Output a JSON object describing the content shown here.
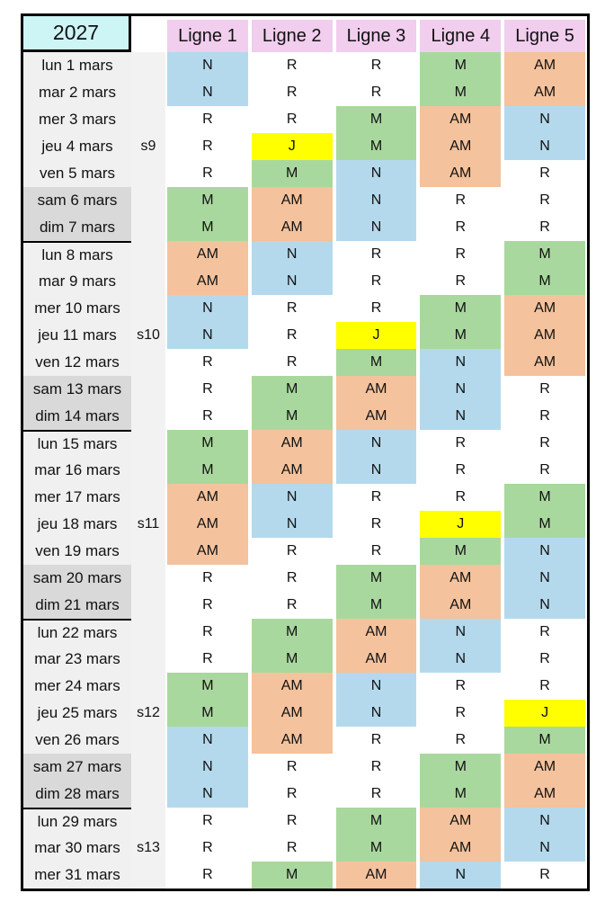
{
  "title": {
    "year": "2027"
  },
  "header": {
    "columns": [
      "Ligne 1",
      "Ligne 2",
      "Ligne 3",
      "Ligne 4",
      "Ligne 5"
    ]
  },
  "colors": {
    "year_box_cyan": "#cdf5f6",
    "header_pink": "#f1cdee",
    "weekday_gray": "#f0f0f0",
    "weekend_gray": "#d9d9d9",
    "week_column_gray": "#f2f2f2",
    "border_black": "#000000"
  },
  "shift_colors": {
    "N": "#b4d9ec",
    "M": "#a9d89e",
    "AM": "#f4c29c",
    "J": "#ffff00",
    "R": "#ffffff"
  },
  "rows": [
    {
      "date": "lun 1 mars",
      "week": "",
      "weekend": false,
      "week_start": false,
      "cells": [
        "N",
        "R",
        "R",
        "M",
        "AM"
      ]
    },
    {
      "date": "mar 2 mars",
      "week": "",
      "weekend": false,
      "week_start": false,
      "cells": [
        "N",
        "R",
        "R",
        "M",
        "AM"
      ]
    },
    {
      "date": "mer 3 mars",
      "week": "",
      "weekend": false,
      "week_start": false,
      "cells": [
        "R",
        "R",
        "M",
        "AM",
        "N"
      ]
    },
    {
      "date": "jeu 4 mars",
      "week": "s9",
      "weekend": false,
      "week_start": false,
      "cells": [
        "R",
        "J",
        "M",
        "AM",
        "N"
      ]
    },
    {
      "date": "ven 5 mars",
      "week": "",
      "weekend": false,
      "week_start": false,
      "cells": [
        "R",
        "M",
        "N",
        "AM",
        "R"
      ]
    },
    {
      "date": "sam 6 mars",
      "week": "",
      "weekend": true,
      "week_start": false,
      "cells": [
        "M",
        "AM",
        "N",
        "R",
        "R"
      ]
    },
    {
      "date": "dim 7 mars",
      "week": "",
      "weekend": true,
      "week_start": false,
      "cells": [
        "M",
        "AM",
        "N",
        "R",
        "R"
      ]
    },
    {
      "date": "lun 8 mars",
      "week": "",
      "weekend": false,
      "week_start": true,
      "cells": [
        "AM",
        "N",
        "R",
        "R",
        "M"
      ]
    },
    {
      "date": "mar 9 mars",
      "week": "",
      "weekend": false,
      "week_start": false,
      "cells": [
        "AM",
        "N",
        "R",
        "R",
        "M"
      ]
    },
    {
      "date": "mer 10 mars",
      "week": "",
      "weekend": false,
      "week_start": false,
      "cells": [
        "N",
        "R",
        "R",
        "M",
        "AM"
      ]
    },
    {
      "date": "jeu 11 mars",
      "week": "s10",
      "weekend": false,
      "week_start": false,
      "cells": [
        "N",
        "R",
        "J",
        "M",
        "AM"
      ]
    },
    {
      "date": "ven 12 mars",
      "week": "",
      "weekend": false,
      "week_start": false,
      "cells": [
        "R",
        "R",
        "M",
        "N",
        "AM"
      ]
    },
    {
      "date": "sam 13 mars",
      "week": "",
      "weekend": true,
      "week_start": false,
      "cells": [
        "R",
        "M",
        "AM",
        "N",
        "R"
      ]
    },
    {
      "date": "dim 14 mars",
      "week": "",
      "weekend": true,
      "week_start": false,
      "cells": [
        "R",
        "M",
        "AM",
        "N",
        "R"
      ]
    },
    {
      "date": "lun 15 mars",
      "week": "",
      "weekend": false,
      "week_start": true,
      "cells": [
        "M",
        "AM",
        "N",
        "R",
        "R"
      ]
    },
    {
      "date": "mar 16 mars",
      "week": "",
      "weekend": false,
      "week_start": false,
      "cells": [
        "M",
        "AM",
        "N",
        "R",
        "R"
      ]
    },
    {
      "date": "mer 17 mars",
      "week": "",
      "weekend": false,
      "week_start": false,
      "cells": [
        "AM",
        "N",
        "R",
        "R",
        "M"
      ]
    },
    {
      "date": "jeu 18 mars",
      "week": "s11",
      "weekend": false,
      "week_start": false,
      "cells": [
        "AM",
        "N",
        "R",
        "J",
        "M"
      ]
    },
    {
      "date": "ven 19 mars",
      "week": "",
      "weekend": false,
      "week_start": false,
      "cells": [
        "AM",
        "R",
        "R",
        "M",
        "N"
      ]
    },
    {
      "date": "sam 20 mars",
      "week": "",
      "weekend": true,
      "week_start": false,
      "cells": [
        "R",
        "R",
        "M",
        "AM",
        "N"
      ]
    },
    {
      "date": "dim 21 mars",
      "week": "",
      "weekend": true,
      "week_start": false,
      "cells": [
        "R",
        "R",
        "M",
        "AM",
        "N"
      ]
    },
    {
      "date": "lun 22 mars",
      "week": "",
      "weekend": false,
      "week_start": true,
      "cells": [
        "R",
        "M",
        "AM",
        "N",
        "R"
      ]
    },
    {
      "date": "mar 23 mars",
      "week": "",
      "weekend": false,
      "week_start": false,
      "cells": [
        "R",
        "M",
        "AM",
        "N",
        "R"
      ]
    },
    {
      "date": "mer 24 mars",
      "week": "",
      "weekend": false,
      "week_start": false,
      "cells": [
        "M",
        "AM",
        "N",
        "R",
        "R"
      ]
    },
    {
      "date": "jeu 25 mars",
      "week": "s12",
      "weekend": false,
      "week_start": false,
      "cells": [
        "M",
        "AM",
        "N",
        "R",
        "J"
      ]
    },
    {
      "date": "ven 26 mars",
      "week": "",
      "weekend": false,
      "week_start": false,
      "cells": [
        "N",
        "AM",
        "R",
        "R",
        "M"
      ]
    },
    {
      "date": "sam 27 mars",
      "week": "",
      "weekend": true,
      "week_start": false,
      "cells": [
        "N",
        "R",
        "R",
        "M",
        "AM"
      ]
    },
    {
      "date": "dim 28 mars",
      "week": "",
      "weekend": true,
      "week_start": false,
      "cells": [
        "N",
        "R",
        "R",
        "M",
        "AM"
      ]
    },
    {
      "date": "lun 29 mars",
      "week": "",
      "weekend": false,
      "week_start": true,
      "cells": [
        "R",
        "R",
        "M",
        "AM",
        "N"
      ]
    },
    {
      "date": "mar 30 mars",
      "week": "s13",
      "weekend": false,
      "week_start": false,
      "cells": [
        "R",
        "R",
        "M",
        "AM",
        "N"
      ]
    },
    {
      "date": "mer 31 mars",
      "week": "",
      "weekend": false,
      "week_start": false,
      "cells": [
        "R",
        "M",
        "AM",
        "N",
        "R"
      ]
    }
  ]
}
